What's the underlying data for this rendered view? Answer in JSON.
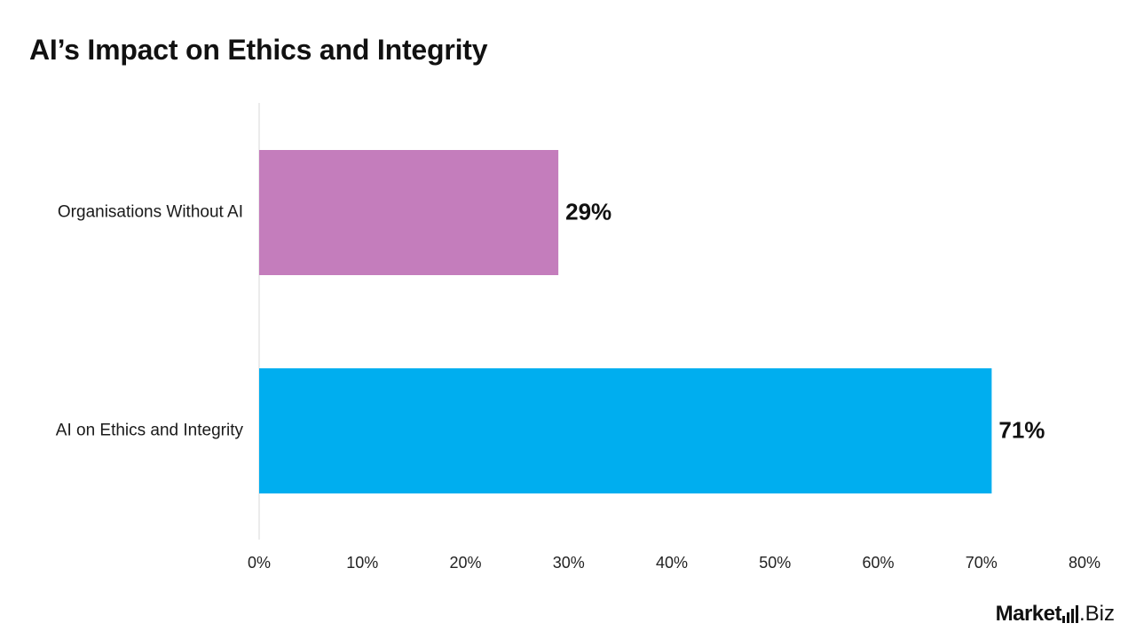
{
  "title": "AI’s Impact on Ethics and Integrity",
  "logo": {
    "brand": "Market",
    "suffix": ".Biz"
  },
  "colors": {
    "without_ai": "#C47DBC",
    "with_ai": "#00AEEF",
    "axis": "#D9D9D9"
  },
  "chart_data": {
    "type": "bar",
    "orientation": "horizontal",
    "title": "AI’s Impact on Ethics and Integrity",
    "categories": [
      "Organisations Without AI",
      "AI on Ethics and Integrity"
    ],
    "values": [
      29,
      71
    ],
    "value_labels": [
      "29%",
      "71%"
    ],
    "xlim": [
      0,
      80
    ],
    "x_ticks": [
      "0%",
      "10%",
      "20%",
      "30%",
      "40%",
      "50%",
      "60%",
      "70%",
      "80%"
    ],
    "grid": false,
    "legend": "none"
  }
}
